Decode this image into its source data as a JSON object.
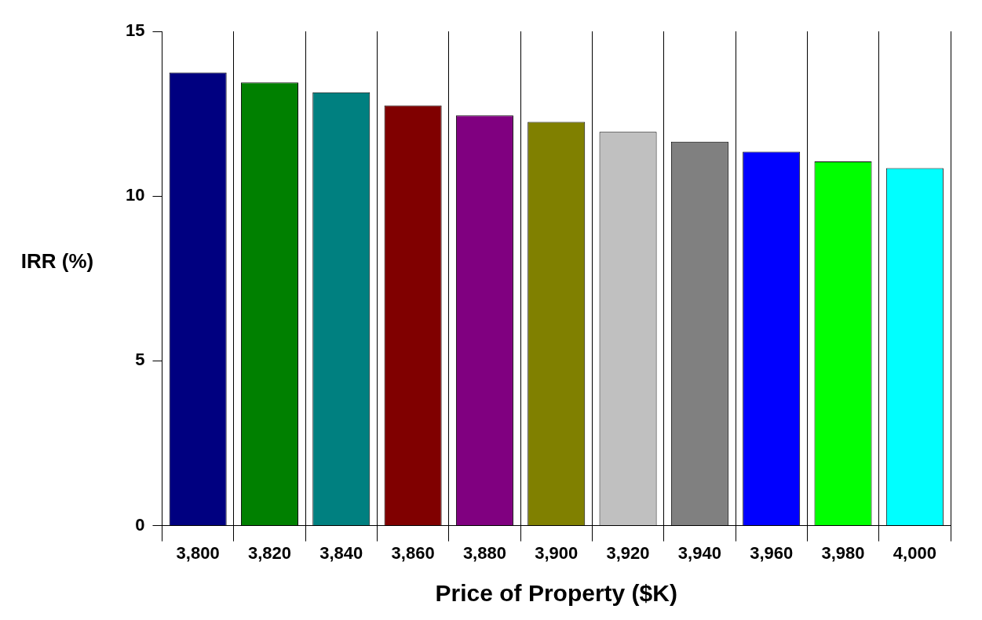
{
  "chart_data": {
    "type": "bar",
    "xlabel": "Price of Property ($K)",
    "ylabel": "IRR (%)",
    "categories": [
      "3,800",
      "3,820",
      "3,840",
      "3,860",
      "3,880",
      "3,900",
      "3,920",
      "3,940",
      "3,960",
      "3,980",
      "4,000"
    ],
    "values": [
      13.75,
      13.45,
      13.15,
      12.75,
      12.45,
      12.25,
      11.95,
      11.65,
      11.35,
      11.05,
      10.85
    ],
    "colors": [
      "#000080",
      "#008000",
      "#008080",
      "#800000",
      "#800080",
      "#808000",
      "#c0c0c0",
      "#808080",
      "#0000ff",
      "#00ff00",
      "#00ffff"
    ],
    "ylim": [
      0,
      15
    ],
    "yticks": [
      0,
      5,
      10,
      15
    ],
    "grid": "x",
    "legend": false
  }
}
